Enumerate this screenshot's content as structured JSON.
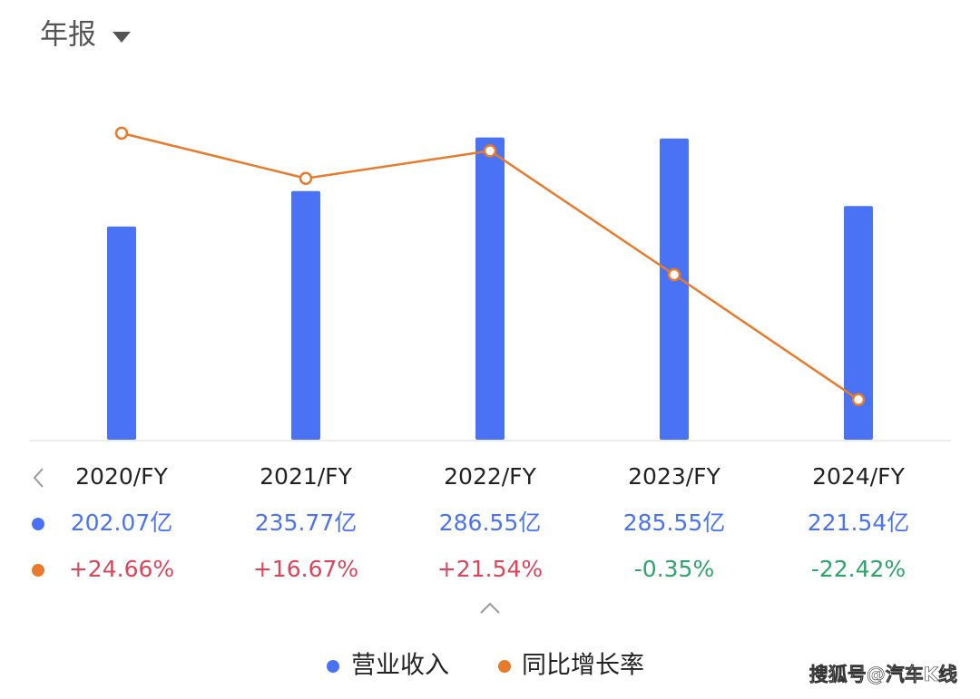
{
  "chart_data": {
    "type": "bar_line",
    "title": "年报",
    "categories": [
      "2020/FY",
      "2021/FY",
      "2022/FY",
      "2023/FY",
      "2024/FY"
    ],
    "ylim": [
      0,
      300
    ],
    "y2lim": [
      -29.5,
      26.4
    ],
    "series": [
      {
        "name": "营业收入",
        "type": "bar",
        "color": "#4a72f5",
        "label_color": "#4a72f5",
        "values": [
          202.07,
          235.77,
          286.55,
          285.55,
          221.54
        ],
        "value_labels": [
          "202.07亿",
          "235.77亿",
          "286.55亿",
          "285.55亿",
          "221.54亿"
        ]
      },
      {
        "name": "同比增长率",
        "type": "line",
        "axis": "y2",
        "color": "#e87a2a",
        "positive_color": "#d9455a",
        "negative_color": "#2ea36b",
        "values": [
          24.66,
          16.67,
          21.54,
          -0.35,
          -22.42
        ],
        "value_labels": [
          "+24.66%",
          "+16.67%",
          "+21.54%",
          "-0.35%",
          "-22.42%"
        ]
      }
    ],
    "watermark": "搜狐号@汽车K线"
  }
}
